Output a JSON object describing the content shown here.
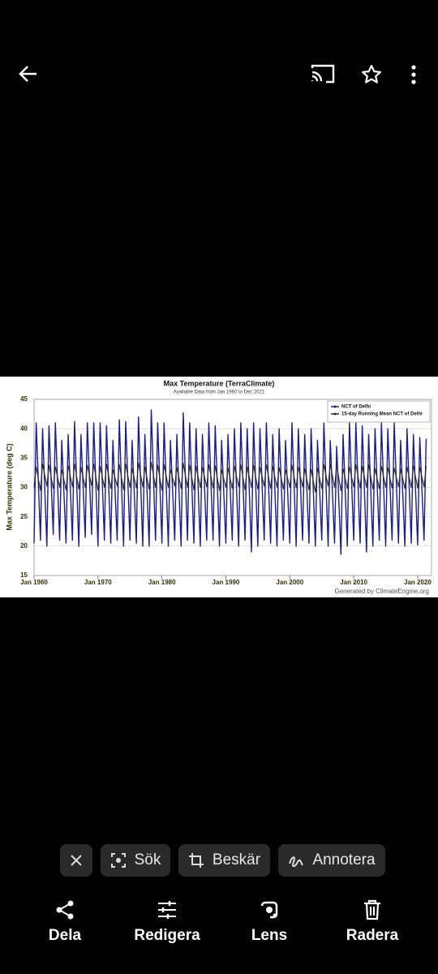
{
  "actions": {
    "chips": [
      "Sök",
      "Beskär",
      "Annotera"
    ],
    "bottom": [
      "Dela",
      "Redigera",
      "Lens",
      "Radera"
    ]
  },
  "chart_data": {
    "type": "line",
    "title": "Max Temperature (TerraClimate)",
    "subtitle": "Available Data from Jan 1960 to Dec 2021",
    "ylabel": "Max Temperature (deg C)",
    "annotation": "Generated by ClimateEngine.org",
    "xlim": [
      "Jan 1960",
      "Mar 2022"
    ],
    "xticks": [
      "Jan 1960",
      "Jan 1970",
      "Jan 1980",
      "Jan 1990",
      "Jan 2000",
      "Jan 2010",
      "Jan 2020"
    ],
    "ylim": [
      15,
      45
    ],
    "yticks": [
      15,
      20,
      25,
      30,
      35,
      40,
      45
    ],
    "grid": true,
    "legend": "upper right",
    "x": [
      "Jan 1960",
      "May 1960",
      "Jan 1961",
      "May 1961",
      "Jan 1962",
      "May 1962",
      "Jan 1963",
      "May 1963",
      "Jan 1964",
      "May 1964",
      "Jan 1965",
      "May 1965",
      "Jan 1966",
      "May 1966",
      "Jan 1967",
      "May 1967",
      "Jan 1968",
      "May 1968",
      "Jan 1969",
      "May 1969",
      "Jan 1970",
      "May 1970",
      "Jan 1971",
      "May 1971",
      "Jan 1972",
      "May 1972",
      "Jan 1973",
      "May 1973",
      "Jan 1974",
      "May 1974",
      "Jan 1975",
      "May 1975",
      "Jan 1976",
      "May 1976",
      "Jan 1977",
      "May 1977",
      "Jan 1978",
      "May 1978",
      "Jan 1979",
      "May 1979",
      "Jan 1980",
      "May 1980",
      "Jan 1981",
      "May 1981",
      "Jan 1982",
      "May 1982",
      "Jan 1983",
      "May 1983",
      "Jan 1984",
      "May 1984",
      "Jan 1985",
      "May 1985",
      "Jan 1986",
      "May 1986",
      "Jan 1987",
      "May 1987",
      "Jan 1988",
      "May 1988",
      "Jan 1989",
      "May 1989",
      "Jan 1990",
      "May 1990",
      "Jan 1991",
      "May 1991",
      "Jan 1992",
      "May 1992",
      "Jan 1993",
      "May 1993",
      "Jan 1994",
      "May 1994",
      "Jan 1995",
      "May 1995",
      "Jan 1996",
      "May 1996",
      "Jan 1997",
      "May 1997",
      "Jan 1998",
      "May 1998",
      "Jan 1999",
      "May 1999",
      "Jan 2000",
      "May 2000",
      "Jan 2001",
      "May 2001",
      "Jan 2002",
      "May 2002",
      "Jan 2003",
      "May 2003",
      "Jan 2004",
      "May 2004",
      "Jan 2005",
      "May 2005",
      "Jan 2006",
      "May 2006",
      "Jan 2007",
      "May 2007",
      "Jan 2008",
      "May 2008",
      "Jan 2009",
      "May 2009",
      "Jan 2010",
      "May 2010",
      "Jan 2011",
      "May 2011",
      "Jan 2012",
      "May 2012",
      "Jan 2013",
      "May 2013",
      "Jan 2014",
      "May 2014",
      "Jan 2015",
      "May 2015",
      "Jan 2016",
      "May 2016",
      "Jan 2017",
      "May 2017",
      "Jan 2018",
      "May 2018",
      "Jan 2019",
      "May 2019",
      "Jan 2020",
      "May 2020",
      "Jan 2021",
      "May 2021"
    ],
    "series": [
      {
        "name": "NCT of Delhi",
        "color": "#1c1c8e",
        "width": 1.4,
        "values": [
          20.5,
          41,
          21,
          40,
          20,
          40.5,
          22,
          41,
          21,
          38,
          20.5,
          39,
          21,
          41.2,
          20,
          39,
          21.5,
          41,
          22,
          41,
          20,
          41,
          21,
          40.5,
          20.5,
          38,
          21,
          41.5,
          20,
          41.2,
          21,
          38,
          20.5,
          42,
          20,
          39,
          20,
          43.2,
          21,
          41,
          20.5,
          41,
          20,
          38,
          21,
          39,
          20,
          42.7,
          21,
          41,
          20.5,
          40,
          20,
          39,
          21,
          41,
          21,
          40.5,
          20,
          38,
          20.5,
          39,
          21,
          40,
          20,
          41,
          21,
          40,
          19,
          41,
          20,
          40,
          21,
          41,
          20.5,
          39,
          20,
          40,
          21,
          38,
          20.5,
          41,
          20,
          40,
          21,
          39,
          20.5,
          40,
          20,
          38,
          21,
          41,
          20,
          38,
          20.5,
          37,
          18.6,
          39,
          20,
          41,
          21,
          41,
          20.5,
          40.5,
          19,
          39,
          20,
          40,
          21,
          41,
          20,
          40,
          21,
          41,
          20.5,
          38,
          20,
          40,
          20.5,
          39,
          20.2,
          38.5,
          21,
          38.3
        ]
      },
      {
        "name": "15-day Running Mean NCT of Delhi",
        "color": "#2b2b2b",
        "width": 1.1,
        "values": [
          30,
          33.5,
          29.5,
          34,
          30.2,
          33.8,
          29.8,
          33.5,
          30,
          33,
          29.6,
          33.7,
          30.1,
          34,
          29.7,
          33.4,
          30,
          33.8,
          30.3,
          34,
          29.5,
          33.6,
          30,
          34,
          29.8,
          33,
          30.2,
          33.9,
          29.6,
          34,
          30,
          33.2,
          29.9,
          34.2,
          30.1,
          33.5,
          29.7,
          34.3,
          30,
          33.8,
          29.5,
          33.9,
          30,
          33,
          30.2,
          33.4,
          29.8,
          34.1,
          30,
          33.8,
          29.6,
          33.6,
          30,
          33.4,
          30.1,
          33.9,
          29.9,
          33.7,
          29.5,
          33,
          30,
          33.3,
          29.8,
          33.6,
          30.1,
          33.9,
          29.6,
          33.5,
          30,
          33.8,
          29.7,
          33.4,
          30.2,
          33.9,
          29.8,
          33.6,
          30,
          33.4,
          29.7,
          33,
          30,
          33.8,
          29.9,
          33.5,
          30.1,
          33.2,
          29.6,
          33.1,
          29.2,
          33.3,
          29.8,
          33.9,
          30.2,
          34,
          30,
          33.8,
          29.4,
          33.2,
          29.8,
          33.5,
          30.1,
          33.9,
          29.9,
          33.6,
          30,
          33.9,
          29.7,
          33.2,
          29.8,
          33.6,
          30,
          33.4,
          29.9,
          33.3,
          30.1,
          33.1,
          29.8,
          33.5,
          30,
          33.7,
          29.9,
          33.4,
          30.1,
          33.6
        ]
      }
    ]
  }
}
